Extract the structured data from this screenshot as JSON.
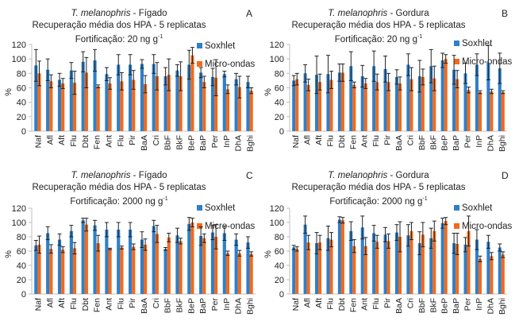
{
  "colors": {
    "soxhlet": "#2f7fc8",
    "micro": "#f26a1b",
    "axis": "#bfbfbf",
    "errbar": "#222222"
  },
  "chart_data": [
    {
      "id": "A",
      "type": "bar",
      "panel_letter": "A",
      "title_species": "T. melanophris",
      "title_tissue": " - Fígado",
      "title_line2": "Recuperação média dos HPA - 5 replicatas",
      "title_line3_prefix": "Fortificação: 20 ng g",
      "title_line3_sup": "-1",
      "ylabel": "%",
      "ylim": [
        0,
        120
      ],
      "yticks": [
        0,
        20,
        40,
        60,
        80,
        100,
        120
      ],
      "legend": [
        "Soxhlet",
        "Micro-ondas"
      ],
      "legend_position": "top-right",
      "categories": [
        "Naf",
        "Afl",
        "Aft",
        "Flu",
        "Dbt",
        "Fen",
        "Ant",
        "Flu",
        "Pir",
        "BaA",
        "Cri",
        "BbF",
        "BkF",
        "BeP",
        "BaP",
        "Per",
        "InP",
        "DhA",
        "Bghi"
      ],
      "series": [
        {
          "name": "Soxhlet",
          "values": [
            91,
            85,
            71,
            84,
            96,
            98,
            79,
            92,
            92,
            93,
            93,
            76,
            84,
            92,
            81,
            75,
            79,
            72,
            68
          ],
          "errors": [
            22,
            15,
            9,
            11,
            14,
            15,
            9,
            14,
            14,
            6,
            13,
            12,
            8,
            20,
            7,
            12,
            4,
            8,
            8
          ]
        },
        {
          "name": "Micro-ondas",
          "values": [
            80,
            69,
            66,
            67,
            81,
            62,
            66,
            69,
            71,
            65,
            76,
            78,
            76,
            105,
            68,
            74,
            58,
            61,
            56
          ],
          "errors": [
            17,
            9,
            7,
            16,
            21,
            2,
            8,
            12,
            13,
            12,
            19,
            22,
            20,
            11,
            8,
            25,
            6,
            15,
            4
          ]
        }
      ]
    },
    {
      "id": "B",
      "type": "bar",
      "panel_letter": "B",
      "title_species": "T. melanophris",
      "title_tissue": " - Gordura",
      "title_line2": "Recuperação média dos HPA - 5 replicatas",
      "title_line3_prefix": "Fortificação: 20 ng g",
      "title_line3_sup": "-1",
      "ylabel": "%",
      "ylim": [
        0,
        120
      ],
      "yticks": [
        0,
        20,
        40,
        60,
        80,
        100,
        120
      ],
      "legend": [
        "Soxhlet",
        "Micro-ondas"
      ],
      "legend_position": "top-right",
      "categories": [
        "Naf",
        "Afl",
        "Aft",
        "Flu",
        "Dbt",
        "Fen",
        "Ant",
        "Flu",
        "Pir",
        "BaA",
        "Cri",
        "BbF",
        "BkF",
        "BeP",
        "BaP",
        "Per",
        "InP",
        "DhA",
        "Bghi"
      ],
      "series": [
        {
          "name": "Soxhlet",
          "values": [
            70,
            80,
            78,
            79,
            81,
            90,
            76,
            90,
            86,
            75,
            92,
            76,
            90,
            98,
            85,
            80,
            92,
            95,
            87
          ],
          "errors": [
            7,
            12,
            26,
            26,
            12,
            20,
            15,
            21,
            18,
            10,
            15,
            22,
            23,
            10,
            20,
            14,
            15,
            24,
            21
          ]
        },
        {
          "name": "Micro-ondas",
          "values": [
            72,
            64,
            68,
            71,
            81,
            64,
            66,
            68,
            68,
            66,
            72,
            75,
            73,
            100,
            72,
            57,
            54,
            55,
            54
          ],
          "errors": [
            8,
            8,
            11,
            12,
            12,
            4,
            7,
            11,
            12,
            9,
            16,
            11,
            17,
            6,
            12,
            4,
            2,
            3,
            2
          ]
        }
      ]
    },
    {
      "id": "C",
      "type": "bar",
      "panel_letter": "C",
      "title_species": "T. melanophris",
      "title_tissue": " - Fígado",
      "title_line2": "Recuperação média dos HPA - 5 replicatas",
      "title_line3_prefix": "Fortificação: 2000 ng g",
      "title_line3_sup": "-1",
      "ylabel": "%",
      "ylim": [
        0,
        120
      ],
      "yticks": [
        0,
        20,
        40,
        60,
        80,
        100,
        120
      ],
      "legend": [
        "Soxhlet",
        "Micro-ondas"
      ],
      "legend_position": "top-right",
      "categories": [
        "Naf",
        "Afl",
        "Aft",
        "Flu",
        "Dbt",
        "Fen",
        "Ant",
        "Flu",
        "Pir",
        "BaA",
        "Cri",
        "BbF",
        "BkF",
        "BeP",
        "BaP",
        "Per",
        "InP",
        "DhA",
        "Bghi"
      ],
      "series": [
        {
          "name": "Soxhlet",
          "values": [
            68,
            85,
            76,
            88,
            103,
            96,
            90,
            90,
            90,
            76,
            95,
            63,
            82,
            98,
            81,
            86,
            85,
            76,
            72
          ],
          "errors": [
            7,
            9,
            8,
            8,
            3,
            7,
            10,
            10,
            10,
            11,
            8,
            2,
            10,
            9,
            13,
            10,
            10,
            8,
            8
          ]
        },
        {
          "name": "Micro-ondas",
          "values": [
            69,
            63,
            62,
            64,
            97,
            71,
            63,
            65,
            66,
            69,
            84,
            79,
            74,
            100,
            78,
            80,
            57,
            57,
            56
          ],
          "errors": [
            12,
            6,
            4,
            8,
            9,
            11,
            1,
            2,
            4,
            8,
            12,
            6,
            4,
            6,
            6,
            17,
            3,
            4,
            3
          ]
        }
      ]
    },
    {
      "id": "D",
      "type": "bar",
      "panel_letter": "D",
      "title_species": "T. melanophris",
      "title_tissue": " - Gordura",
      "title_line2": "Recuperação média dos HPA - 5 replicatas",
      "title_line3_prefix": "Fortificação: 2000 ng g",
      "title_line3_sup": "-1",
      "ylabel": "%",
      "ylim": [
        0,
        120
      ],
      "yticks": [
        0,
        20,
        40,
        60,
        80,
        100,
        120
      ],
      "legend": [
        "Soxhlet",
        "Micro-ondas"
      ],
      "legend_position": "top-right",
      "categories": [
        "Naf",
        "Afl",
        "Aft",
        "Flu",
        "Dbt",
        "Fen",
        "Ant",
        "Flu",
        "Pir",
        "BaA",
        "Cri",
        "BbF",
        "BkF",
        "BeP",
        "BaP",
        "Per",
        "InP",
        "DhA",
        "Bghi"
      ],
      "series": [
        {
          "name": "Soxhlet",
          "values": [
            65,
            97,
            71,
            78,
            104,
            88,
            93,
            85,
            83,
            86,
            82,
            71,
            78,
            99,
            71,
            69,
            76,
            73,
            65
          ],
          "errors": [
            3,
            12,
            15,
            17,
            4,
            13,
            16,
            11,
            10,
            11,
            15,
            16,
            14,
            7,
            14,
            10,
            14,
            9,
            5
          ]
        },
        {
          "name": "Micro-ondas",
          "values": [
            63,
            72,
            72,
            76,
            103,
            67,
            67,
            73,
            74,
            80,
            88,
            83,
            88,
            102,
            70,
            88,
            49,
            53,
            55
          ],
          "errors": [
            3,
            10,
            10,
            10,
            4,
            9,
            12,
            9,
            10,
            21,
            12,
            17,
            14,
            5,
            15,
            21,
            4,
            5,
            4
          ]
        }
      ]
    }
  ]
}
